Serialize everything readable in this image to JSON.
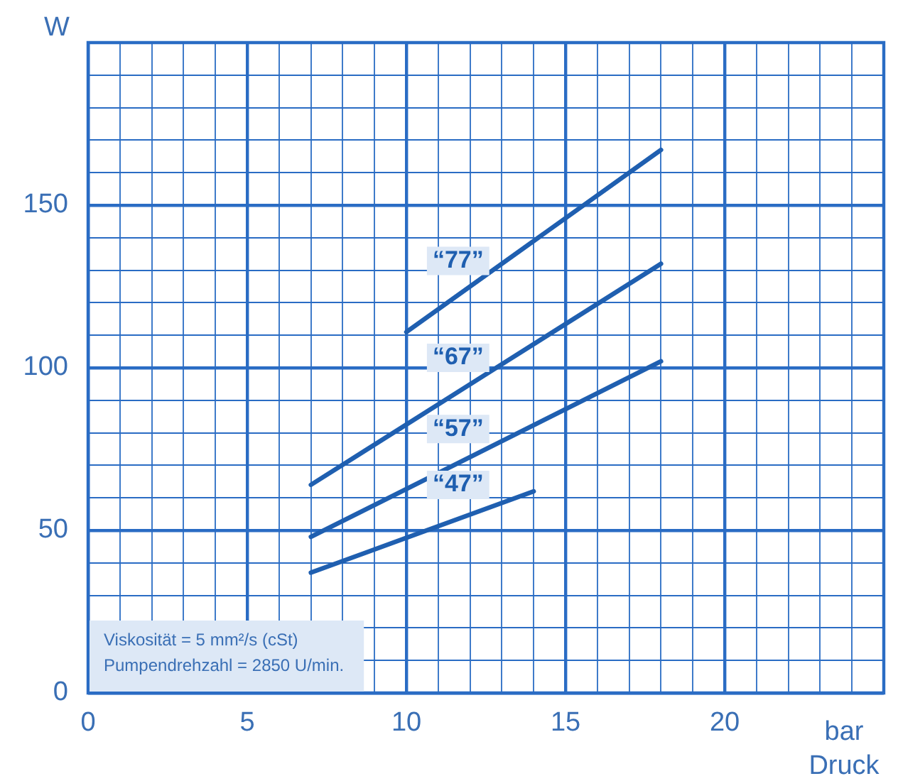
{
  "chart_data": {
    "type": "line",
    "ylabel": "W",
    "xlabel": "bar\nDruck",
    "xlim": [
      0,
      25
    ],
    "xticks": [
      0,
      {
        "value": 1,
        "label": null
      },
      {
        "value": 2,
        "label": null
      },
      {
        "value": 3,
        "label": null
      },
      {
        "value": 4,
        "label": null
      },
      5,
      {
        "value": 6,
        "label": null
      },
      {
        "value": 7,
        "label": null
      },
      {
        "value": 8,
        "label": null
      },
      {
        "value": 9,
        "label": null
      },
      10,
      {
        "value": 11,
        "label": null
      },
      {
        "value": 12,
        "label": null
      },
      {
        "value": 13,
        "label": null
      },
      {
        "value": 14,
        "label": null
      },
      15,
      {
        "value": 16,
        "label": null
      },
      {
        "value": 17,
        "label": null
      },
      {
        "value": 18,
        "label": null
      },
      {
        "value": 19,
        "label": null
      },
      20,
      {
        "value": 21,
        "label": null
      },
      {
        "value": 22,
        "label": null
      },
      {
        "value": 23,
        "label": null
      },
      {
        "value": 24,
        "label": null
      },
      {
        "value": 25,
        "label": null
      }
    ],
    "ylim": [
      0,
      200
    ],
    "yticks": [
      0,
      {
        "value": 10,
        "label": null
      },
      {
        "value": 20,
        "label": null
      },
      {
        "value": 30,
        "label": null
      },
      {
        "value": 40,
        "label": null
      },
      50,
      {
        "value": 60,
        "label": null
      },
      {
        "value": 70,
        "label": null
      },
      {
        "value": 80,
        "label": null
      },
      {
        "value": 90,
        "label": null
      },
      100,
      {
        "value": 110,
        "label": null
      },
      {
        "value": 120,
        "label": null
      },
      {
        "value": 130,
        "label": null
      },
      {
        "value": 140,
        "label": null
      },
      150,
      {
        "value": 160,
        "label": null
      },
      {
        "value": 170,
        "label": null
      },
      {
        "value": 180,
        "label": null
      },
      {
        "value": 190,
        "label": null
      },
      {
        "value": 200,
        "label": null
      }
    ],
    "grid": true,
    "legend": false,
    "marker": "none",
    "line_style": "solid",
    "series": [
      {
        "name": "“47”",
        "color": "#1f5fb0",
        "x": [
          7,
          14
        ],
        "values": [
          37,
          62
        ]
      },
      {
        "name": "“57”",
        "color": "#1f5fb0",
        "x": [
          7,
          18
        ],
        "values": [
          48,
          102
        ]
      },
      {
        "name": "“67”",
        "color": "#1f5fb0",
        "x": [
          7,
          18
        ],
        "values": [
          64,
          132
        ]
      },
      {
        "name": "“77”",
        "color": "#1f5fb0",
        "x": [
          10,
          18
        ],
        "values": [
          111,
          167
        ]
      }
    ],
    "annotations": [
      "Viskosität = 5 mm²/s (cSt)",
      "Pumpendrehzahl = 2850 U/min."
    ]
  }
}
